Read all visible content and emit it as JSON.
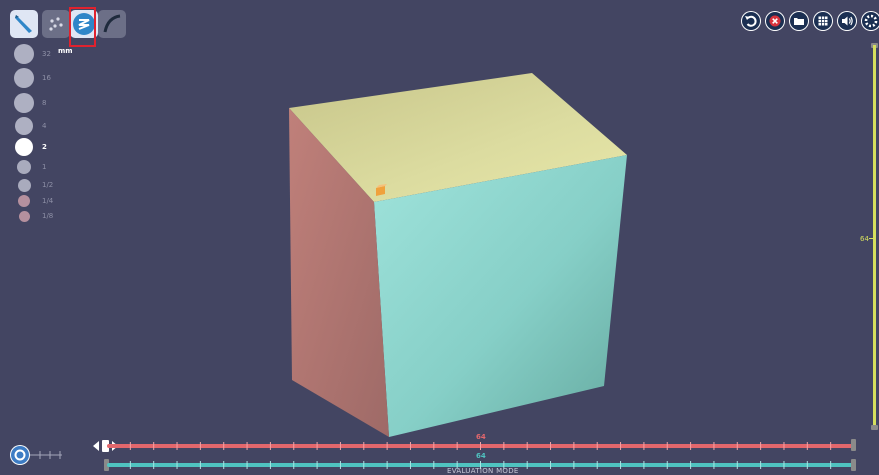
{
  "toolbar": {
    "tools": [
      {
        "icon": "pen-icon",
        "label": "Pen tool",
        "active": true
      },
      {
        "icon": "dots-icon",
        "label": "Dots tool",
        "active": false
      },
      {
        "icon": "zigzag-icon",
        "label": "Zigzag tool",
        "active": false,
        "highlighted": true
      },
      {
        "icon": "curve-icon",
        "label": "Curve tool",
        "active": false
      }
    ]
  },
  "size_panel": {
    "unit": "mm",
    "sizes": [
      {
        "label": "32",
        "selected": false
      },
      {
        "label": "16",
        "selected": false
      },
      {
        "label": "8",
        "selected": false
      },
      {
        "label": "4",
        "selected": false
      },
      {
        "label": "2",
        "selected": true
      },
      {
        "label": "1",
        "selected": false
      },
      {
        "label": "1/2",
        "selected": false
      },
      {
        "label": "1/4",
        "selected": false
      },
      {
        "label": "1/8",
        "selected": false
      }
    ]
  },
  "top_right_buttons": [
    {
      "icon": "undo-icon"
    },
    {
      "icon": "close-icon"
    },
    {
      "icon": "folder-icon"
    },
    {
      "icon": "grid-icon"
    },
    {
      "icon": "volume-icon"
    },
    {
      "icon": "gear-icon"
    }
  ],
  "sliders": {
    "vertical": {
      "value": "64",
      "color": "#d6e05e"
    },
    "red": {
      "value": "64",
      "color": "#e2676c"
    },
    "cyan": {
      "value": "64",
      "color": "#4fc3c0"
    }
  },
  "footer": {
    "mode": "EVALUATION MODE"
  },
  "cube": {
    "top_color": "#d7d790",
    "front_color": "#86d3cc",
    "side_color": "#b97a78",
    "marker_color": "#f0a13c"
  }
}
